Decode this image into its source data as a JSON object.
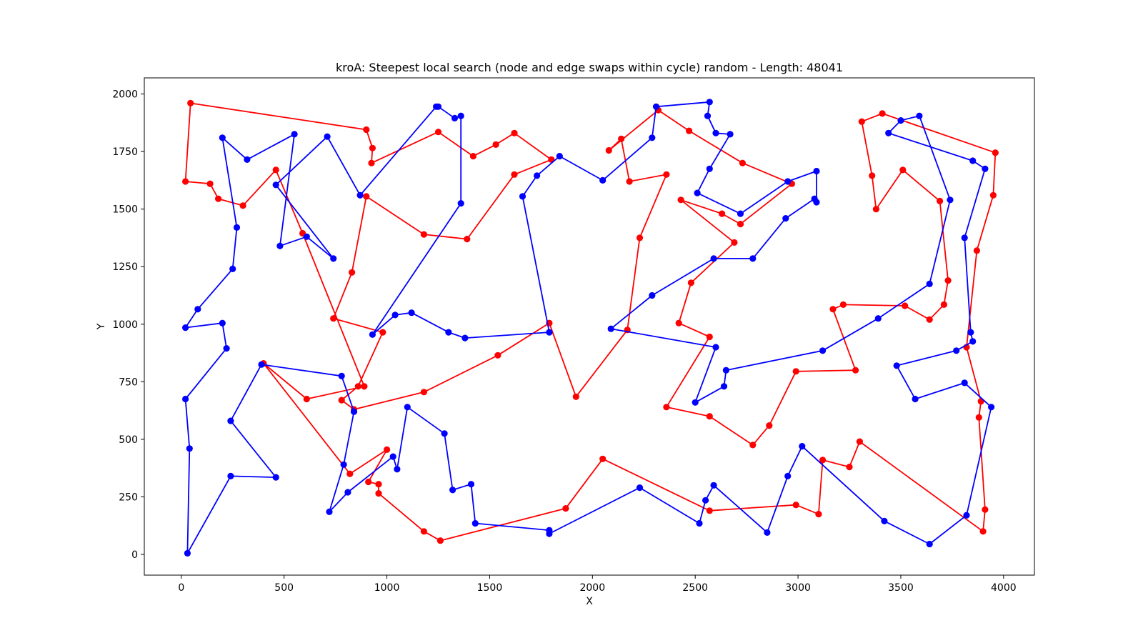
{
  "chart_data": {
    "type": "line",
    "title": "kroA: Steepest local search (node and edge swaps within cycle) random - Length: 48041",
    "xlabel": "X",
    "ylabel": "Y",
    "xlim": [
      -180,
      4150
    ],
    "ylim": [
      -90,
      2070
    ],
    "xticks": [
      0,
      500,
      1000,
      1500,
      2000,
      2500,
      3000,
      3500,
      4000
    ],
    "yticks": [
      0,
      250,
      500,
      750,
      1000,
      1250,
      1500,
      1750,
      2000
    ],
    "grid": false,
    "series": [
      {
        "color": "#ff0000",
        "closed": true,
        "points": [
          [
            45,
            1960
          ],
          [
            900,
            1845
          ],
          [
            930,
            1765
          ],
          [
            925,
            1700
          ],
          [
            1250,
            1835
          ],
          [
            1420,
            1730
          ],
          [
            1530,
            1780
          ],
          [
            1620,
            1830
          ],
          [
            1800,
            1715
          ],
          [
            1620,
            1650
          ],
          [
            1390,
            1370
          ],
          [
            1180,
            1390
          ],
          [
            900,
            1555
          ],
          [
            830,
            1225
          ],
          [
            740,
            1025
          ],
          [
            980,
            965
          ],
          [
            860,
            730
          ],
          [
            780,
            670
          ],
          [
            840,
            630
          ],
          [
            1180,
            705
          ],
          [
            1540,
            865
          ],
          [
            1790,
            1005
          ],
          [
            1920,
            685
          ],
          [
            2170,
            975
          ],
          [
            2230,
            1375
          ],
          [
            2360,
            1650
          ],
          [
            2180,
            1620
          ],
          [
            2140,
            1805
          ],
          [
            2080,
            1755
          ],
          [
            2320,
            1930
          ],
          [
            2470,
            1840
          ],
          [
            2730,
            1700
          ],
          [
            2970,
            1610
          ],
          [
            2720,
            1435
          ],
          [
            2630,
            1480
          ],
          [
            2430,
            1540
          ],
          [
            2690,
            1355
          ],
          [
            2480,
            1180
          ],
          [
            2420,
            1005
          ],
          [
            2570,
            945
          ],
          [
            2360,
            640
          ],
          [
            2570,
            600
          ],
          [
            2780,
            475
          ],
          [
            2860,
            560
          ],
          [
            2990,
            795
          ],
          [
            3280,
            800
          ],
          [
            3170,
            1065
          ],
          [
            3220,
            1085
          ],
          [
            3520,
            1080
          ],
          [
            3640,
            1020
          ],
          [
            3710,
            1085
          ],
          [
            3730,
            1190
          ],
          [
            3690,
            1535
          ],
          [
            3510,
            1670
          ],
          [
            3380,
            1500
          ],
          [
            3360,
            1645
          ],
          [
            3310,
            1880
          ],
          [
            3410,
            1915
          ],
          [
            3960,
            1745
          ],
          [
            3950,
            1560
          ],
          [
            3870,
            1320
          ],
          [
            3820,
            900
          ],
          [
            3890,
            665
          ],
          [
            3880,
            595
          ],
          [
            3910,
            195
          ],
          [
            3900,
            100
          ],
          [
            3300,
            490
          ],
          [
            3250,
            380
          ],
          [
            3120,
            410
          ],
          [
            3100,
            175
          ],
          [
            2990,
            215
          ],
          [
            2570,
            190
          ],
          [
            2050,
            415
          ],
          [
            1870,
            200
          ],
          [
            1260,
            60
          ],
          [
            1180,
            100
          ],
          [
            960,
            265
          ],
          [
            960,
            305
          ],
          [
            910,
            315
          ],
          [
            1000,
            455
          ],
          [
            820,
            350
          ],
          [
            400,
            830
          ],
          [
            610,
            675
          ],
          [
            890,
            730
          ],
          [
            590,
            1395
          ],
          [
            460,
            1670
          ],
          [
            300,
            1515
          ],
          [
            180,
            1545
          ],
          [
            140,
            1610
          ],
          [
            20,
            1620
          ]
        ]
      },
      {
        "color": "#0000ff",
        "closed": true,
        "points": [
          [
            1240,
            1945
          ],
          [
            1250,
            1945
          ],
          [
            1330,
            1895
          ],
          [
            1360,
            1905
          ],
          [
            1360,
            1525
          ],
          [
            930,
            955
          ],
          [
            1040,
            1040
          ],
          [
            1120,
            1050
          ],
          [
            1300,
            965
          ],
          [
            1380,
            940
          ],
          [
            1790,
            965
          ],
          [
            1660,
            1555
          ],
          [
            1730,
            1645
          ],
          [
            1840,
            1730
          ],
          [
            2050,
            1625
          ],
          [
            2290,
            1810
          ],
          [
            2310,
            1945
          ],
          [
            2570,
            1965
          ],
          [
            2560,
            1905
          ],
          [
            2600,
            1830
          ],
          [
            2670,
            1825
          ],
          [
            2570,
            1675
          ],
          [
            2510,
            1570
          ],
          [
            2720,
            1480
          ],
          [
            2950,
            1620
          ],
          [
            3090,
            1665
          ],
          [
            3090,
            1530
          ],
          [
            3080,
            1545
          ],
          [
            2940,
            1460
          ],
          [
            2780,
            1285
          ],
          [
            2590,
            1285
          ],
          [
            2290,
            1125
          ],
          [
            2090,
            980
          ],
          [
            2600,
            900
          ],
          [
            2500,
            660
          ],
          [
            2640,
            730
          ],
          [
            2650,
            800
          ],
          [
            3120,
            885
          ],
          [
            3390,
            1025
          ],
          [
            3640,
            1175
          ],
          [
            3740,
            1540
          ],
          [
            3590,
            1905
          ],
          [
            3500,
            1885
          ],
          [
            3440,
            1830
          ],
          [
            3850,
            1710
          ],
          [
            3910,
            1675
          ],
          [
            3810,
            1375
          ],
          [
            3840,
            965
          ],
          [
            3850,
            925
          ],
          [
            3770,
            885
          ],
          [
            3480,
            820
          ],
          [
            3570,
            675
          ],
          [
            3810,
            745
          ],
          [
            3940,
            640
          ],
          [
            3820,
            170
          ],
          [
            3640,
            45
          ],
          [
            3420,
            145
          ],
          [
            3020,
            470
          ],
          [
            2950,
            340
          ],
          [
            2850,
            95
          ],
          [
            2590,
            300
          ],
          [
            2550,
            235
          ],
          [
            2520,
            135
          ],
          [
            2230,
            290
          ],
          [
            1790,
            90
          ],
          [
            1790,
            105
          ],
          [
            1430,
            135
          ],
          [
            1410,
            305
          ],
          [
            1320,
            280
          ],
          [
            1280,
            525
          ],
          [
            1100,
            640
          ],
          [
            1050,
            370
          ],
          [
            1030,
            425
          ],
          [
            810,
            270
          ],
          [
            720,
            185
          ],
          [
            790,
            390
          ],
          [
            840,
            620
          ],
          [
            780,
            775
          ],
          [
            390,
            825
          ],
          [
            240,
            580
          ],
          [
            460,
            335
          ],
          [
            240,
            340
          ],
          [
            30,
            5
          ],
          [
            40,
            460
          ],
          [
            20,
            675
          ],
          [
            220,
            895
          ],
          [
            200,
            1005
          ],
          [
            20,
            985
          ],
          [
            80,
            1065
          ],
          [
            250,
            1240
          ],
          [
            270,
            1420
          ],
          [
            200,
            1810
          ],
          [
            320,
            1715
          ],
          [
            550,
            1825
          ],
          [
            480,
            1340
          ],
          [
            610,
            1380
          ],
          [
            740,
            1285
          ],
          [
            460,
            1605
          ],
          [
            710,
            1815
          ],
          [
            870,
            1560
          ]
        ]
      }
    ]
  }
}
